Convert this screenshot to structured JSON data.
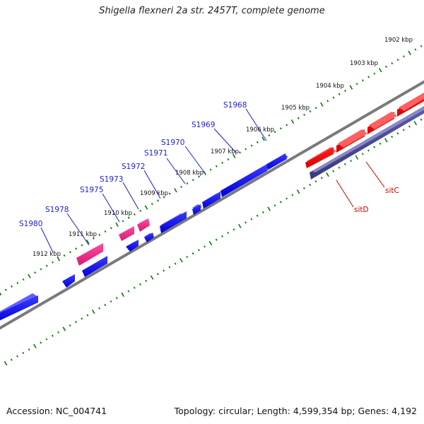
{
  "title": "Shigella flexneri 2a str. 2457T, complete genome",
  "footer": {
    "accession": "Accession: NC_004741",
    "summary": "Topology: circular; Length: 4,599,354 bp; Genes: 4,192"
  },
  "ruler": {
    "ticks": [
      {
        "label": "1902 kbp"
      },
      {
        "label": "1903 kbp"
      },
      {
        "label": "1904 kbp"
      },
      {
        "label": "1905 kbp"
      },
      {
        "label": "1906 kbp"
      },
      {
        "label": "1907 kbp"
      },
      {
        "label": "1908 kbp"
      },
      {
        "label": "1909 kbp"
      },
      {
        "label": "1910 kbp"
      },
      {
        "label": "1911 kbp"
      },
      {
        "label": "1912 kbp"
      }
    ]
  },
  "genes": {
    "forward": [
      {
        "label": "S1968"
      },
      {
        "label": "S1969"
      },
      {
        "label": "S1970"
      },
      {
        "label": "S1971"
      },
      {
        "label": "S1972"
      },
      {
        "label": "S1973"
      },
      {
        "label": "S1975"
      },
      {
        "label": "S1978"
      },
      {
        "label": "S1980"
      }
    ],
    "reverse": [
      {
        "label": "sitC"
      },
      {
        "label": "sitD"
      }
    ]
  },
  "colors": {
    "backbone": "#808080",
    "forward_cds": "#0000ee",
    "misc_feature": "#e0207a",
    "reverse_cds": "#ee0000",
    "reverse_misc": "#48488c",
    "tick": "#0a7a0a",
    "forward_label": "#1a1ad8",
    "reverse_label": "#cc0000"
  }
}
